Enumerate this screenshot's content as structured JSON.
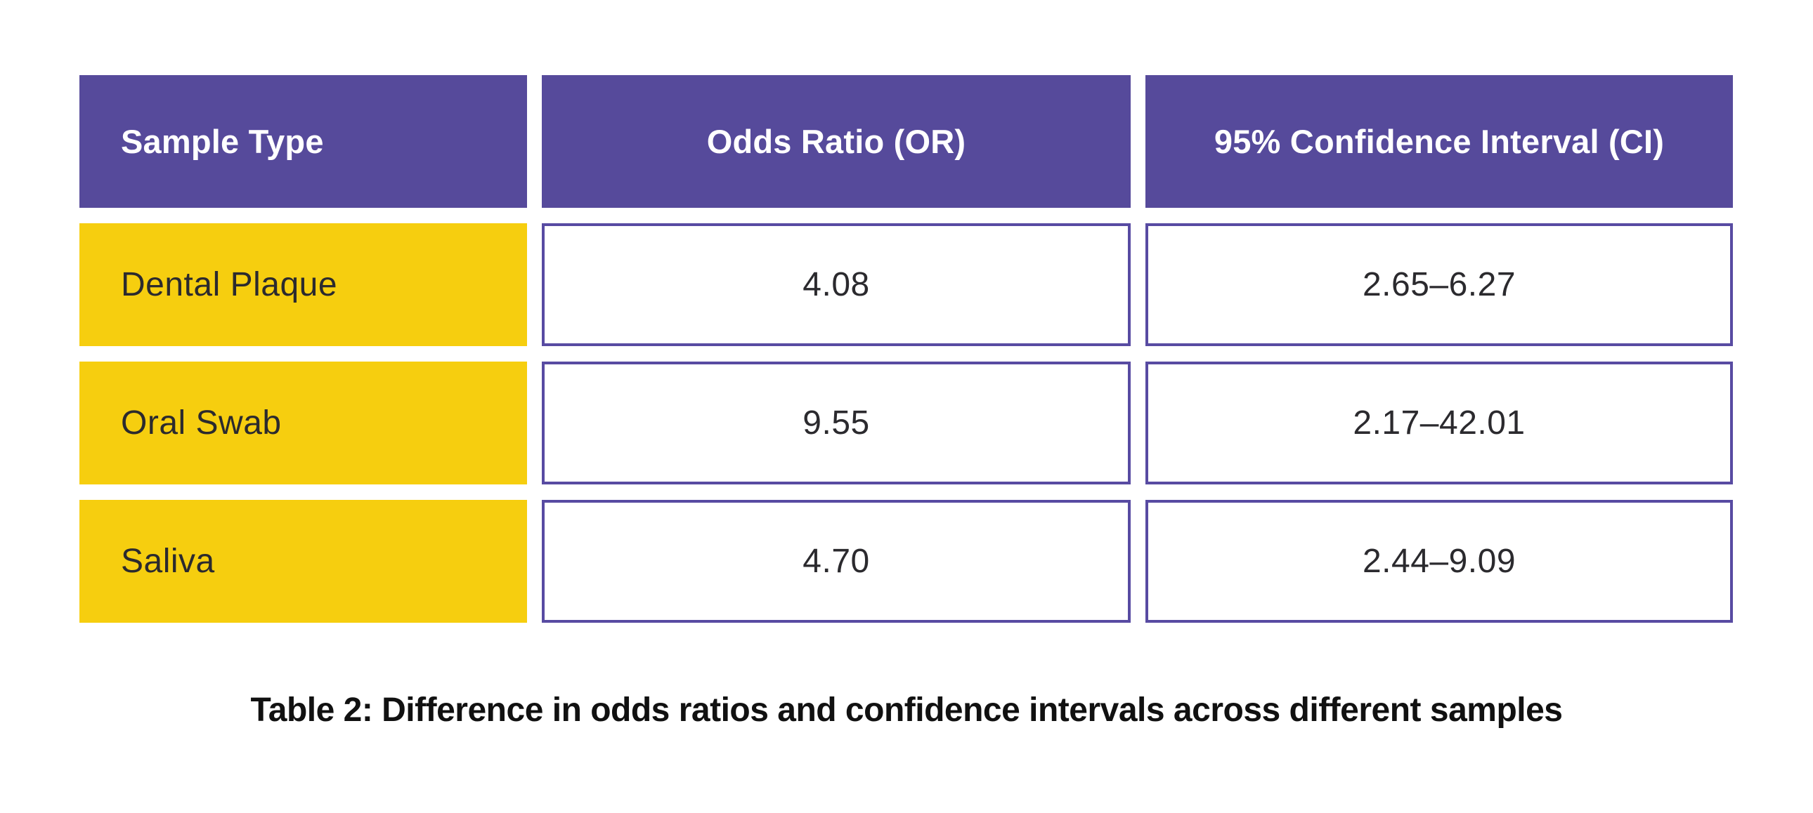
{
  "colors": {
    "header_bg": "#564A9B",
    "label_bg": "#F6CE0F",
    "value_border": "#584BA2",
    "header_text": "#FFFFFF",
    "body_text": "#2B2A2E",
    "caption_text": "#111111",
    "page_bg": "#FFFFFF"
  },
  "table": {
    "columns": [
      "Sample Type",
      "Odds Ratio (OR)",
      "95% Confidence Interval (CI)"
    ],
    "rows": [
      {
        "sample_type": "Dental Plaque",
        "odds_ratio": "4.08",
        "confidence_interval": "2.65–6.27"
      },
      {
        "sample_type": "Oral Swab",
        "odds_ratio": "9.55",
        "confidence_interval": "2.17–42.01"
      },
      {
        "sample_type": "Saliva",
        "odds_ratio": "4.70",
        "confidence_interval": "2.44–9.09"
      }
    ]
  },
  "caption": "Table 2: Difference in odds ratios and confidence intervals across different samples",
  "chart_data": {
    "type": "table",
    "title": "Table 2: Difference in odds ratios and confidence intervals across different samples",
    "columns": [
      "Sample Type",
      "Odds Ratio (OR)",
      "95% Confidence Interval (CI)"
    ],
    "rows": [
      [
        "Dental Plaque",
        4.08,
        "2.65–6.27"
      ],
      [
        "Oral Swab",
        9.55,
        "2.17–42.01"
      ],
      [
        "Saliva",
        4.7,
        "2.44–9.09"
      ]
    ],
    "odds_ratios": [
      4.08,
      9.55,
      4.7
    ],
    "ci_low": [
      2.65,
      2.17,
      2.44
    ],
    "ci_high": [
      6.27,
      42.01,
      9.09
    ]
  }
}
